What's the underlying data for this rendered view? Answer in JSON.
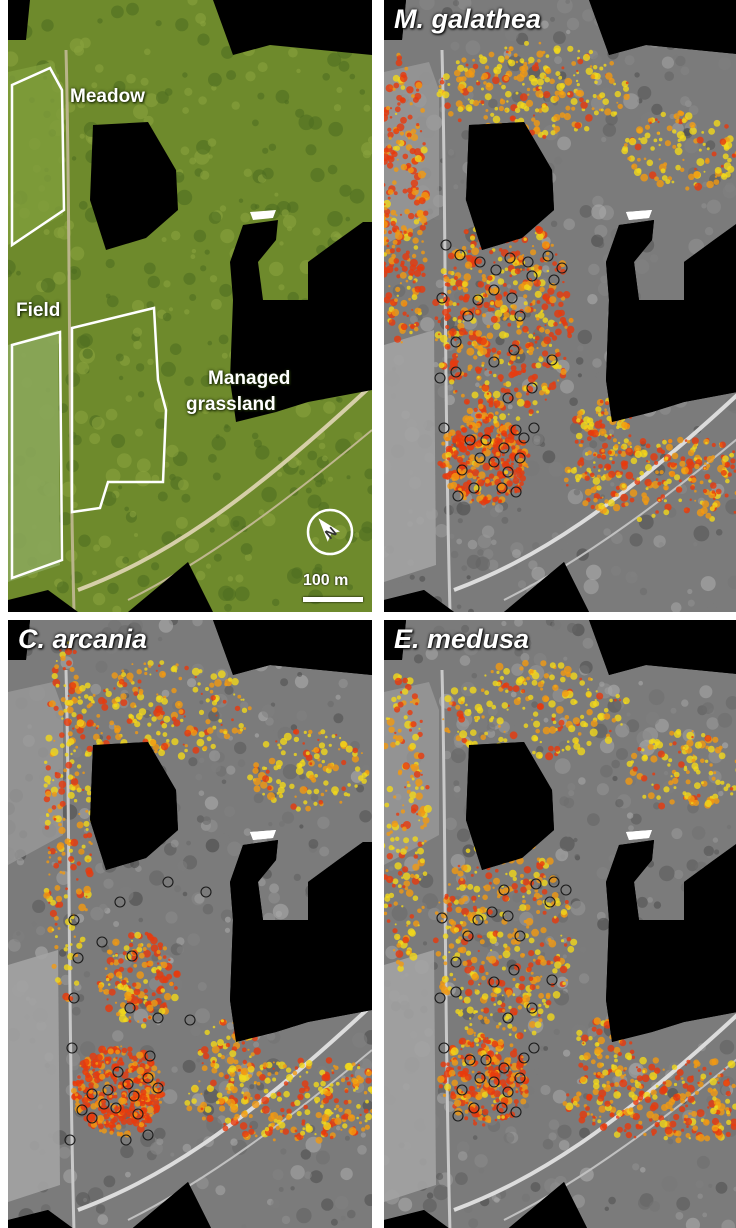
{
  "panels": [
    {
      "id": "overview",
      "title": "",
      "kind": "orthophoto"
    },
    {
      "id": "galathea",
      "title": "M. galathea",
      "kind": "suitability",
      "circles": "galathea"
    },
    {
      "id": "arcania",
      "title": "C. arcania",
      "kind": "suitability",
      "circles": "arcania"
    },
    {
      "id": "medusa",
      "title": "E. medusa",
      "kind": "suitability",
      "circles": "medusa"
    }
  ],
  "labels": {
    "meadow": "Meadow",
    "field": "Field",
    "managed": "Managed",
    "grassland": "grassland"
  },
  "scale_bar": {
    "label": "100 m"
  },
  "north_arrow": {
    "letter": "N"
  },
  "colors": {
    "orthophoto_base": "#6e8a2c",
    "forest": "#4f6e22",
    "field": "#8aa65a",
    "mask": "#000000",
    "high": "#e8390c",
    "medium": "#f39a12",
    "low": "#f2d81a",
    "gray_base": "#8c8c8c"
  }
}
